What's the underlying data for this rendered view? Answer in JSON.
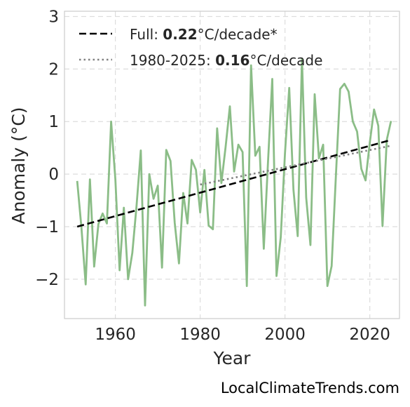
{
  "chart_data": {
    "type": "line",
    "xlabel": "Year",
    "ylabel": "Anomaly (°C)",
    "xlim": [
      1948,
      2027
    ],
    "ylim": [
      -2.75,
      3.1
    ],
    "x_ticks": [
      1960,
      1980,
      2000,
      2020
    ],
    "x_tick_labels": [
      "1960",
      "1980",
      "2000",
      "2020"
    ],
    "y_ticks": [
      -2,
      -1,
      0,
      1,
      2,
      3
    ],
    "y_tick_labels": [
      "−2",
      "−1",
      "0",
      "1",
      "2",
      "3"
    ],
    "grid": true,
    "legend_position": "top-left",
    "colors": {
      "anomaly": "#8bbd87",
      "full_trend": "#000000",
      "recent_trend": "#808080"
    },
    "series": [
      {
        "kind": "anomaly",
        "x": [
          1951,
          1952,
          1953,
          1954,
          1955,
          1956,
          1957,
          1958,
          1959,
          1960,
          1961,
          1962,
          1963,
          1964,
          1965,
          1966,
          1967,
          1968,
          1969,
          1970,
          1971,
          1972,
          1973,
          1974,
          1975,
          1976,
          1977,
          1978,
          1979,
          1980,
          1981,
          1982,
          1983,
          1984,
          1985,
          1986,
          1987,
          1988,
          1989,
          1990,
          1991,
          1992,
          1993,
          1994,
          1995,
          1996,
          1997,
          1998,
          1999,
          2000,
          2001,
          2002,
          2003,
          2004,
          2005,
          2006,
          2007,
          2008,
          2009,
          2010,
          2011,
          2012,
          2013,
          2014,
          2015,
          2016,
          2017,
          2018,
          2019,
          2020,
          2021,
          2022,
          2023,
          2024,
          2025
        ],
        "values": [
          -0.13,
          -1.02,
          -2.1,
          -0.1,
          -1.76,
          -0.95,
          -0.75,
          -0.94,
          1.0,
          -0.1,
          -1.83,
          -0.64,
          -2.0,
          -1.5,
          -0.6,
          0.45,
          -2.5,
          0.0,
          -0.47,
          -0.22,
          -1.78,
          0.46,
          0.25,
          -0.93,
          -1.7,
          -0.36,
          -0.94,
          0.27,
          0.08,
          -0.73,
          0.08,
          -0.98,
          -1.05,
          0.87,
          -0.17,
          0.52,
          1.29,
          0.05,
          0.56,
          0.42,
          -2.13,
          2.07,
          0.35,
          0.52,
          -1.42,
          0.24,
          1.81,
          -1.94,
          -1.2,
          0.4,
          1.64,
          -0.3,
          -1.18,
          2.2,
          -0.45,
          -1.35,
          1.52,
          0.3,
          0.56,
          -2.13,
          -1.75,
          -0.04,
          1.62,
          1.72,
          1.57,
          1.0,
          0.81,
          0.1,
          -0.12,
          0.6,
          1.23,
          0.92,
          -0.99,
          0.65,
          1.01
        ]
      },
      {
        "name": "Full: ",
        "rate": "0.22",
        "unit": "°C/decade*",
        "kind": "full_trend",
        "x": [
          1951,
          2025
        ],
        "values": [
          -1.0,
          0.65
        ]
      },
      {
        "name": "1980-2025: ",
        "rate": "0.16",
        "unit": "°C/decade",
        "kind": "recent_trend",
        "x": [
          1980,
          2025
        ],
        "values": [
          -0.2,
          0.54
        ]
      }
    ]
  },
  "credit": "LocalClimateTrends.com"
}
